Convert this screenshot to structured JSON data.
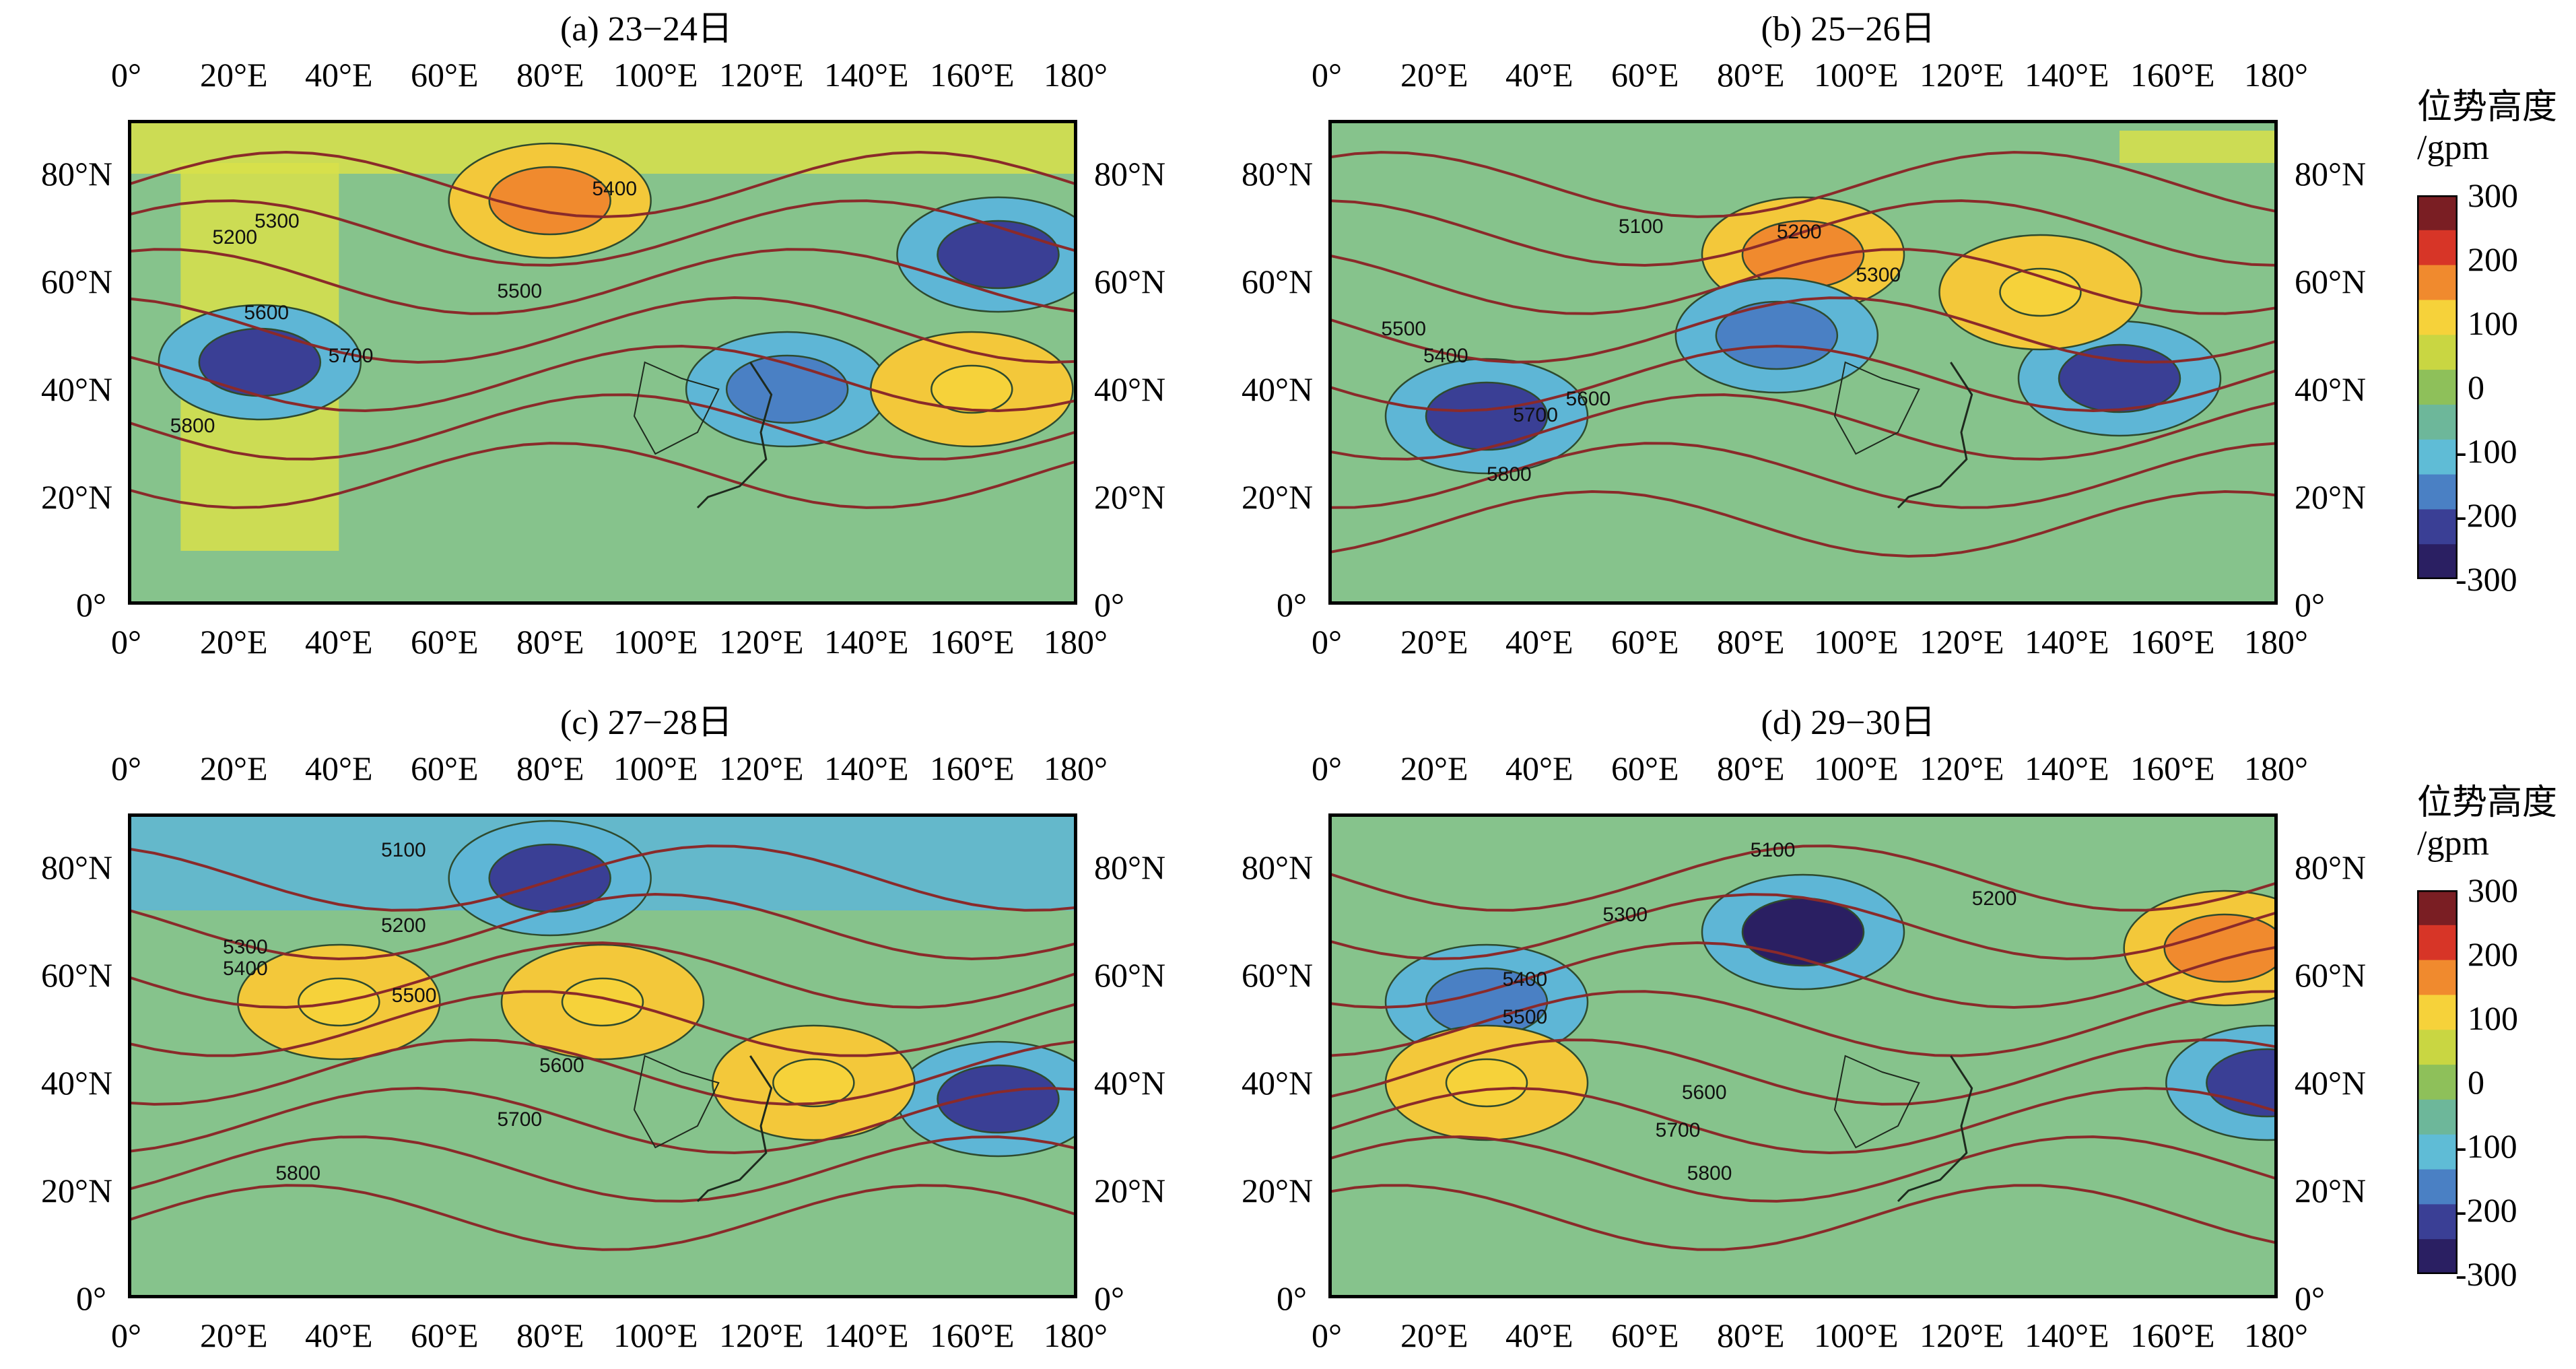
{
  "panels": [
    {
      "title": "(a) 23−24日",
      "contours": [
        {
          "label": "5200"
        },
        {
          "label": "5300"
        },
        {
          "label": "5400"
        },
        {
          "label": "5500"
        },
        {
          "label": "5600"
        },
        {
          "label": "5700"
        },
        {
          "label": "5800"
        }
      ]
    },
    {
      "title": "(b) 25−26日",
      "contours": [
        {
          "label": "5100"
        },
        {
          "label": "5200"
        },
        {
          "label": "5300"
        },
        {
          "label": "5400"
        },
        {
          "label": "5500"
        },
        {
          "label": "5600"
        },
        {
          "label": "5700"
        },
        {
          "label": "5800"
        }
      ]
    },
    {
      "title": "(c) 27−28日",
      "contours": [
        {
          "label": "5100"
        },
        {
          "label": "5200"
        },
        {
          "label": "5300"
        },
        {
          "label": "5400"
        },
        {
          "label": "5500"
        },
        {
          "label": "5600"
        },
        {
          "label": "5700"
        },
        {
          "label": "5800"
        }
      ]
    },
    {
      "title": "(d) 29−30日",
      "contours": [
        {
          "label": "5100"
        },
        {
          "label": "5200"
        },
        {
          "label": "5300"
        },
        {
          "label": "5400"
        },
        {
          "label": "5500"
        },
        {
          "label": "5600"
        },
        {
          "label": "5700"
        },
        {
          "label": "5800"
        }
      ]
    }
  ],
  "axes": {
    "lon_ticks": [
      "0°",
      "20°E",
      "40°E",
      "60°E",
      "80°E",
      "100°E",
      "120°E",
      "140°E",
      "160°E",
      "180°"
    ],
    "lat_ticks": [
      "0°",
      "20°N",
      "40°N",
      "60°N",
      "80°N"
    ]
  },
  "colorbar": {
    "title_line1": "位势高度",
    "title_line2": "/gpm",
    "ticks": [
      "300",
      "200",
      "100",
      "0",
      "-100",
      "-200",
      "-300"
    ],
    "colors": [
      "#7a1e23",
      "#d73527",
      "#f08a2e",
      "#f6d23a",
      "#c9d642",
      "#8ec05a",
      "#6db79a",
      "#5fbcd6",
      "#4a80c4",
      "#3a3f95",
      "#2a1f62"
    ]
  },
  "map_colors": {
    "background": "#86c38c",
    "anomaly_fill_pos": "#f3c83a",
    "anomaly_fill_strong": "#e8632a",
    "anomaly_fill_neg": "#5eb6d6",
    "anomaly_fill_strong_neg": "#3b4f9c",
    "contour_line": "#8a2a2a",
    "coast_line": "#1e2a1e"
  },
  "chart_data": {
    "type": "heatmap",
    "title": "",
    "xlabel": "",
    "ylabel": "",
    "xlim": [
      0,
      180
    ],
    "ylim": [
      0,
      90
    ],
    "units": "位势高度/gpm",
    "colorbar_range": [
      -300,
      300
    ],
    "panels": [
      {
        "title": "(a) 23−24日",
        "contour_levels": [
          5200,
          5300,
          5400,
          5500,
          5600,
          5700,
          5800
        ],
        "anomaly_centers": [
          {
            "lon": 80,
            "lat": 75,
            "value": 200
          },
          {
            "lon": 165,
            "lat": 65,
            "value": -250
          },
          {
            "lon": 25,
            "lat": 45,
            "value": -250
          },
          {
            "lon": 125,
            "lat": 40,
            "value": -200
          },
          {
            "lon": 160,
            "lat": 40,
            "value": 100
          }
        ]
      },
      {
        "title": "(b) 25−26日",
        "contour_levels": [
          5100,
          5200,
          5300,
          5400,
          5500,
          5600,
          5700,
          5800
        ],
        "anomaly_centers": [
          {
            "lon": 90,
            "lat": 65,
            "value": 200
          },
          {
            "lon": 30,
            "lat": 35,
            "value": -250
          },
          {
            "lon": 85,
            "lat": 50,
            "value": -200
          },
          {
            "lon": 150,
            "lat": 42,
            "value": -250
          },
          {
            "lon": 135,
            "lat": 58,
            "value": 100
          }
        ]
      },
      {
        "title": "(c) 27−28日",
        "contour_levels": [
          5100,
          5200,
          5300,
          5400,
          5500,
          5600,
          5700,
          5800
        ],
        "anomaly_centers": [
          {
            "lon": 80,
            "lat": 78,
            "value": -250
          },
          {
            "lon": 40,
            "lat": 55,
            "value": 100
          },
          {
            "lon": 90,
            "lat": 55,
            "value": 100
          },
          {
            "lon": 165,
            "lat": 37,
            "value": -250
          },
          {
            "lon": 130,
            "lat": 40,
            "value": 100
          }
        ]
      },
      {
        "title": "(d) 29−30日",
        "contour_levels": [
          5100,
          5200,
          5300,
          5400,
          5500,
          5600,
          5700,
          5800
        ],
        "anomaly_centers": [
          {
            "lon": 90,
            "lat": 68,
            "value": -280
          },
          {
            "lon": 170,
            "lat": 65,
            "value": 200
          },
          {
            "lon": 30,
            "lat": 55,
            "value": -200
          },
          {
            "lon": 178,
            "lat": 40,
            "value": -250
          },
          {
            "lon": 30,
            "lat": 40,
            "value": 100
          }
        ]
      }
    ]
  }
}
